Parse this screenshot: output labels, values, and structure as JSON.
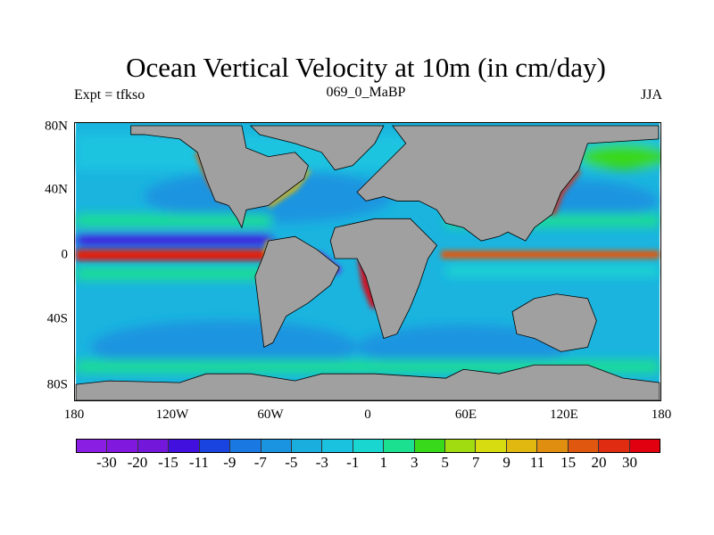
{
  "title": "Ocean Vertical Velocity at 10m (in cm/day)",
  "left_subtitle": "Expt = tfkso",
  "center_subtitle": "069_0_MaBP",
  "right_subtitle": "JJA",
  "lat_labels": [
    "80N",
    "40N",
    "0",
    "40S",
    "80S"
  ],
  "lon_labels": [
    "180",
    "120W",
    "60W",
    "0",
    "60E",
    "120E",
    "180"
  ],
  "colorbar": {
    "labels": [
      "-30",
      "-20",
      "-15",
      "-11",
      "-9",
      "-7",
      "-5",
      "-3",
      "-1",
      "1",
      "3",
      "5",
      "7",
      "9",
      "11",
      "15",
      "20",
      "30"
    ],
    "colors": [
      "#8a1ee2",
      "#8118de",
      "#7318da",
      "#4210de",
      "#1a44e0",
      "#1a78e2",
      "#1a94e0",
      "#1aaedf",
      "#1ac2e0",
      "#1ad6d0",
      "#1ae090",
      "#38d81a",
      "#a0dc10",
      "#d6dc10",
      "#e0b810",
      "#e08e10",
      "#e05810",
      "#e02c10",
      "#e00010"
    ]
  },
  "land_color": "#a0a0a0"
}
